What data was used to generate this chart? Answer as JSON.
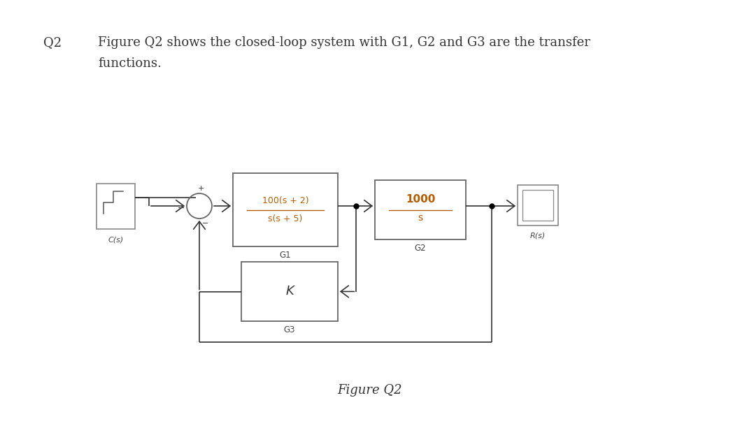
{
  "title_q": "Q2",
  "title_text_line1": "Figure Q2 shows the closed-loop system with G1, G2 and G3 are the transfer",
  "title_text_line2": "functions.",
  "figure_label": "Figure Q2",
  "bg_color": "#ffffff",
  "box_edge_color": "#666666",
  "orange_color": "#b85c00",
  "input_label": "C(s)",
  "output_label": "R(s)",
  "g1_num": "100(s + 2)",
  "g1_den": "s(s + 5)",
  "g1_label": "G1",
  "g2_num": "1000",
  "g2_den": "s",
  "g2_label": "G2",
  "g3_content": "K",
  "g3_label": "G3"
}
